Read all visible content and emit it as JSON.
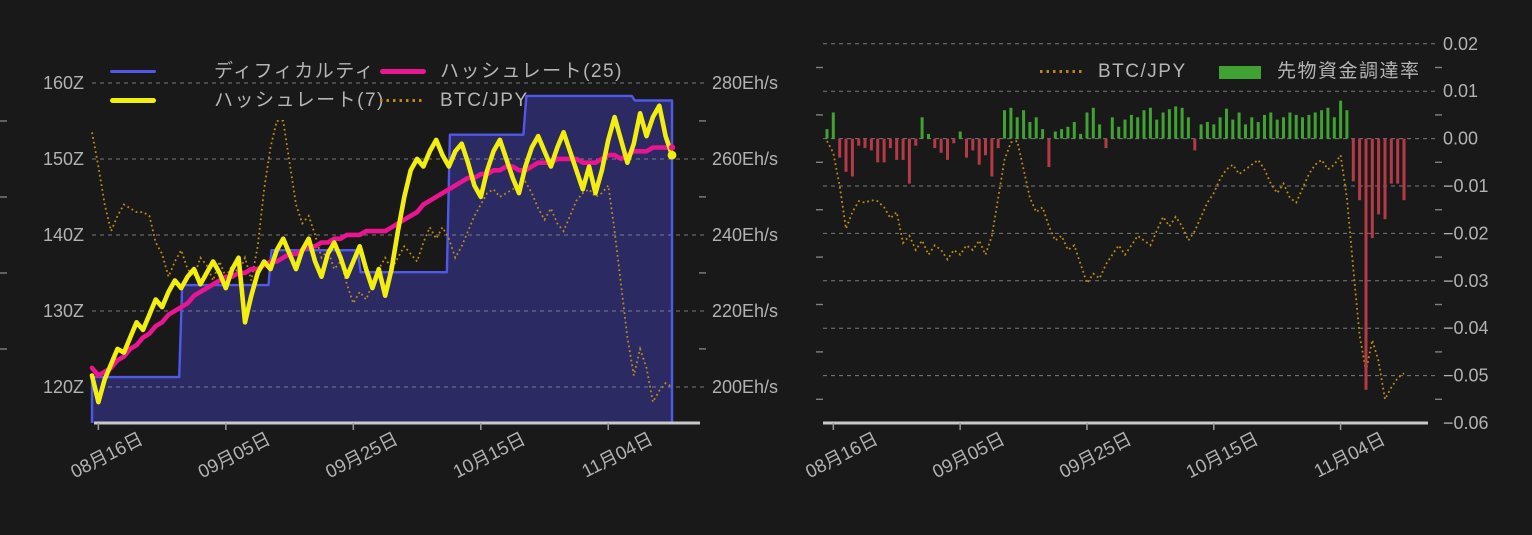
{
  "colors": {
    "background": "#191919",
    "grid": "#9a9a9a",
    "axis_line": "#c9c9c9",
    "tick_label": "#b2b2b2",
    "legend_text": "#b5b5b5",
    "difficulty_line": "#5158e8",
    "difficulty_fill": "#2b2a63",
    "hashrate7": "#f2ef0e",
    "hashrate25": "#ea1590",
    "btc_jpy": "#bd8a12",
    "funding_positive": "#41a234",
    "funding_negative": "#b43b46"
  },
  "left_chart": {
    "legend": [
      {
        "label": "ディフィカルティ",
        "swatch": "line",
        "color": "#5158e8"
      },
      {
        "label": "ハッシュレート(25)",
        "swatch": "line-thick",
        "color": "#ea1590"
      },
      {
        "label": "ハッシュレート(7)",
        "swatch": "line-thick",
        "color": "#f2ef0e"
      },
      {
        "label": "BTC/JPY",
        "swatch": "dotted",
        "color": "#bd8a12"
      }
    ]
  },
  "right_chart": {
    "legend": [
      {
        "label": "BTC/JPY",
        "swatch": "dotted",
        "color": "#bd8a12"
      },
      {
        "label": "先物資金調達率",
        "swatch": "rect",
        "color": "#41a234"
      }
    ]
  },
  "chart_data": [
    {
      "id": "hashrate-difficulty-chart",
      "type": "line",
      "num_points": 92,
      "x_tick_labels": [
        "08月16日",
        "09月05日",
        "09月25日",
        "10月15日",
        "11月04日"
      ],
      "x_tick_day_indices": [
        1,
        21,
        41,
        61,
        81
      ],
      "y_axis_left": {
        "unit": "Z",
        "tick_labels": [
          "160Z",
          "150Z",
          "140Z",
          "130Z",
          "120Z"
        ],
        "tick_values": [
          160,
          150,
          140,
          130,
          120
        ]
      },
      "y_axis_right": {
        "unit": "Eh/s",
        "tick_labels": [
          "280Eh/s",
          "260Eh/s",
          "240Eh/s",
          "220Eh/s",
          "200Eh/s"
        ],
        "tick_values": [
          280,
          260,
          240,
          220,
          200
        ]
      },
      "series": [
        {
          "name": "ディフィカルティ",
          "style": "step-area",
          "axis": "left",
          "unit": "Z",
          "values": [
            121.3,
            121.3,
            121.3,
            121.3,
            121.3,
            121.3,
            121.3,
            121.3,
            121.3,
            121.3,
            121.3,
            121.3,
            121.3,
            121.3,
            133.4,
            133.4,
            133.4,
            133.4,
            133.4,
            133.4,
            133.4,
            133.4,
            133.4,
            133.4,
            133.4,
            133.4,
            133.4,
            133.4,
            138.0,
            138.0,
            138.0,
            138.0,
            138.0,
            138.0,
            138.0,
            138.0,
            138.0,
            138.0,
            138.0,
            138.0,
            138.0,
            138.0,
            135.1,
            135.1,
            135.1,
            135.1,
            135.1,
            135.1,
            135.1,
            135.1,
            135.1,
            135.1,
            135.1,
            135.1,
            135.1,
            135.1,
            153.2,
            153.2,
            153.2,
            153.2,
            153.2,
            153.2,
            153.2,
            153.2,
            153.2,
            153.2,
            153.2,
            153.2,
            158.3,
            158.3,
            158.3,
            158.3,
            158.3,
            158.3,
            158.3,
            158.3,
            158.3,
            158.3,
            158.3,
            158.3,
            158.3,
            158.3,
            158.3,
            158.3,
            158.3,
            157.7,
            157.7,
            157.7,
            157.7,
            157.7,
            157.7,
            157.7
          ]
        },
        {
          "name": "ハッシュレート(7)",
          "style": "line",
          "axis": "right",
          "unit": "Eh/s",
          "values": [
            203,
            196,
            202,
            206,
            210,
            209,
            213,
            217,
            215,
            219,
            223,
            221,
            225,
            228,
            226,
            229,
            231,
            227,
            230,
            233,
            230,
            226,
            231,
            234,
            217,
            224,
            230,
            233,
            231,
            236,
            239,
            235,
            231,
            236,
            239,
            233,
            229,
            235,
            238,
            234,
            229,
            233,
            237,
            231,
            226,
            231,
            224,
            231,
            241,
            250,
            257,
            260,
            258,
            262,
            265,
            261,
            258,
            262,
            264,
            259,
            253,
            250,
            257,
            262,
            265,
            260,
            255,
            251,
            258,
            263,
            266,
            262,
            258,
            263,
            267,
            262,
            257,
            252,
            258,
            251,
            257,
            265,
            271,
            265,
            259,
            264,
            272,
            266,
            271,
            274,
            266,
            261
          ]
        },
        {
          "name": "ハッシュレート(25)",
          "style": "line",
          "axis": "right",
          "unit": "Eh/s",
          "values": [
            205,
            203,
            204,
            205,
            207,
            208,
            210,
            211,
            213,
            214,
            216,
            217,
            219,
            220,
            221,
            222,
            224,
            225,
            226,
            227,
            228,
            229,
            229,
            230,
            230,
            231,
            231,
            232,
            233,
            233,
            234,
            235,
            235,
            236,
            237,
            237,
            238,
            238,
            239,
            239,
            240,
            240,
            240,
            241,
            241,
            241,
            241,
            242,
            243,
            244,
            245,
            246,
            248,
            249,
            250,
            251,
            252,
            253,
            254,
            255,
            255,
            256,
            256,
            257,
            257,
            258,
            258,
            257,
            257,
            258,
            259,
            259,
            259,
            260,
            260,
            260,
            260,
            259,
            259,
            259,
            260,
            261,
            261,
            260,
            261,
            262,
            262,
            262,
            263,
            263,
            263,
            263
          ]
        },
        {
          "name": "BTC/JPY",
          "style": "dotted-line",
          "axis": "overlay-on-right-scale",
          "unit": "Eh/s-equivalent",
          "values": [
            267,
            258,
            248,
            241,
            245,
            248,
            247,
            246,
            246,
            245,
            238,
            235,
            229,
            233,
            236,
            231,
            229,
            234,
            232,
            228,
            233,
            229,
            232,
            230,
            234,
            228,
            237,
            252,
            263,
            270,
            270,
            259,
            248,
            243,
            245,
            240,
            234,
            236,
            231,
            233,
            227,
            222,
            225,
            223,
            227,
            231,
            234,
            231,
            234,
            237,
            235,
            233,
            238,
            242,
            239,
            242,
            239,
            234,
            237,
            241,
            245,
            248,
            251,
            252,
            250,
            251,
            252,
            253,
            254,
            251,
            247,
            244,
            247,
            243,
            241,
            245,
            249,
            251,
            252,
            250,
            251,
            253,
            241,
            227,
            213,
            203,
            210,
            205,
            196,
            199,
            201,
            200
          ]
        }
      ]
    },
    {
      "id": "funding-rate-chart",
      "type": "bar",
      "num_points": 92,
      "x_tick_labels": [
        "08月16日",
        "09月05日",
        "09月25日",
        "10月15日",
        "11月04日"
      ],
      "x_tick_day_indices": [
        1,
        21,
        41,
        61,
        81
      ],
      "y_axis_right": {
        "unit": "",
        "tick_labels": [
          "0.02",
          "0.01",
          "0.00",
          "−0.01",
          "−0.02",
          "−0.03",
          "−0.04",
          "−0.05",
          "−0.06"
        ],
        "tick_values": [
          0.02,
          0.01,
          0.0,
          -0.01,
          -0.02,
          -0.03,
          -0.04,
          -0.05,
          -0.06
        ]
      },
      "series": [
        {
          "name": "BTC/JPY",
          "style": "dotted-line",
          "values": [
            -0.0005,
            -0.003,
            -0.01,
            -0.019,
            -0.0155,
            -0.0132,
            -0.0135,
            -0.013,
            -0.0132,
            -0.0145,
            -0.0168,
            -0.0155,
            -0.022,
            -0.0205,
            -0.0235,
            -0.0215,
            -0.0245,
            -0.0225,
            -0.0235,
            -0.0255,
            -0.0235,
            -0.0245,
            -0.0225,
            -0.0235,
            -0.0215,
            -0.0245,
            -0.0205,
            -0.0125,
            -0.0045,
            -0.0008,
            -0.0005,
            -0.0065,
            -0.0125,
            -0.0155,
            -0.0145,
            -0.0185,
            -0.0215,
            -0.0205,
            -0.0235,
            -0.0225,
            -0.0265,
            -0.0305,
            -0.0285,
            -0.0295,
            -0.0265,
            -0.0245,
            -0.0225,
            -0.0245,
            -0.0225,
            -0.0205,
            -0.0215,
            -0.0225,
            -0.0195,
            -0.0165,
            -0.0185,
            -0.0165,
            -0.0185,
            -0.0215,
            -0.0195,
            -0.0165,
            -0.0135,
            -0.0115,
            -0.0085,
            -0.0065,
            -0.0055,
            -0.0075,
            -0.0065,
            -0.0055,
            -0.0045,
            -0.0065,
            -0.0095,
            -0.0115,
            -0.0095,
            -0.0125,
            -0.0135,
            -0.0105,
            -0.0075,
            -0.0055,
            -0.0045,
            -0.0065,
            -0.0055,
            -0.0035,
            -0.0125,
            -0.0275,
            -0.0415,
            -0.049,
            -0.0425,
            -0.047,
            -0.055,
            -0.0525,
            -0.0505,
            -0.0495
          ]
        },
        {
          "name": "先物資金調達率",
          "style": "bar",
          "values": [
            0.002,
            0.0055,
            -0.004,
            -0.007,
            -0.008,
            -0.0015,
            -0.002,
            -0.0025,
            -0.005,
            -0.005,
            -0.002,
            -0.0045,
            -0.0045,
            -0.0095,
            -0.0015,
            0.0045,
            0.001,
            -0.002,
            -0.003,
            -0.0045,
            -0.001,
            0.0015,
            -0.004,
            -0.0025,
            -0.0055,
            -0.0035,
            -0.008,
            -0.002,
            0.006,
            0.0065,
            0.0045,
            0.006,
            0.0035,
            0.0045,
            0.002,
            -0.006,
            0.0015,
            0.002,
            0.0025,
            0.0035,
            0.001,
            0.0055,
            0.0065,
            0.003,
            -0.002,
            0.0045,
            0.0025,
            0.004,
            0.005,
            0.0045,
            0.006,
            0.0065,
            0.004,
            0.0055,
            0.0062,
            0.0068,
            0.0065,
            0.0045,
            -0.0025,
            0.003,
            0.0035,
            0.003,
            0.0045,
            0.0063,
            0.004,
            0.0055,
            0.003,
            0.0045,
            0.0035,
            0.005,
            0.0055,
            0.004,
            0.0045,
            0.0055,
            0.005,
            0.0045,
            0.005,
            0.0055,
            0.006,
            0.0065,
            0.0045,
            0.008,
            0.006,
            -0.009,
            -0.013,
            -0.053,
            -0.021,
            -0.016,
            -0.017,
            -0.0095,
            -0.0095,
            -0.013
          ]
        }
      ]
    }
  ]
}
